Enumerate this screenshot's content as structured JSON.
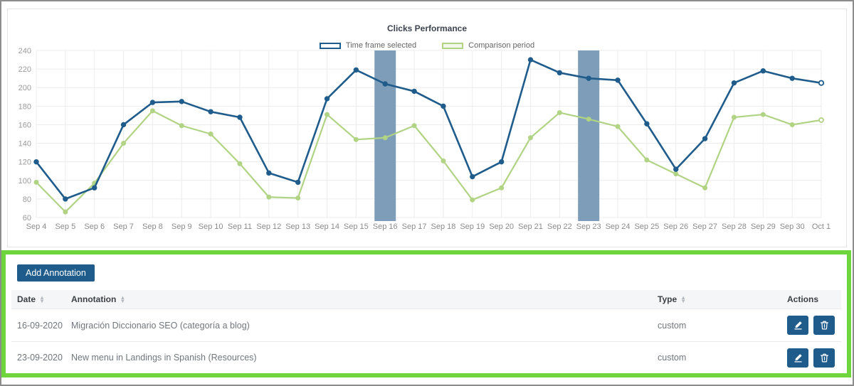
{
  "colors": {
    "primary_blue": "#1f5c8b",
    "comparison_green": "#b1d384",
    "highlight_band": "#7d9db8",
    "panel_border_green": "#6ed63c"
  },
  "icons": {
    "edit": "pencil-icon",
    "delete": "trash-icon",
    "sort": "sort-arrows-icon"
  },
  "chart": {
    "title": "Clicks Performance",
    "legend": [
      {
        "label": "Time frame selected",
        "color": "#1f5c8b"
      },
      {
        "label": "Comparison period",
        "color": "#b1d384"
      }
    ]
  },
  "chart_data": {
    "type": "line",
    "title": "Clicks Performance",
    "xlabel": "",
    "ylabel": "",
    "ylim": [
      60,
      240
    ],
    "ytick_step": 20,
    "grid": true,
    "legend_position": "top",
    "x": [
      "Sep 4",
      "Sep 5",
      "Sep 6",
      "Sep 7",
      "Sep 8",
      "Sep 9",
      "Sep 10",
      "Sep 11",
      "Sep 12",
      "Sep 13",
      "Sep 14",
      "Sep 15",
      "Sep 16",
      "Sep 17",
      "Sep 18",
      "Sep 19",
      "Sep 20",
      "Sep 21",
      "Sep 22",
      "Sep 23",
      "Sep 24",
      "Sep 25",
      "Sep 26",
      "Sep 27",
      "Sep 28",
      "Sep 29",
      "Sep 30",
      "Oct 1"
    ],
    "series": [
      {
        "name": "Time frame selected",
        "color": "#1f5c8b",
        "line_width": 2.6,
        "marker_radius": 3.2,
        "values": [
          120,
          80,
          92,
          160,
          184,
          185,
          174,
          168,
          108,
          98,
          188,
          219,
          204,
          196,
          180,
          104,
          120,
          230,
          216,
          210,
          208,
          161,
          112,
          145,
          205,
          218,
          210,
          205
        ]
      },
      {
        "name": "Comparison period",
        "color": "#b1d384",
        "line_width": 2.2,
        "marker_radius": 3.0,
        "values": [
          98,
          66,
          97,
          140,
          175,
          159,
          150,
          118,
          82,
          81,
          171,
          144,
          146,
          159,
          121,
          79,
          92,
          146,
          173,
          166,
          158,
          122,
          107,
          92,
          168,
          171,
          160,
          165
        ]
      }
    ],
    "highlight_bands": [
      {
        "x": "Sep 16",
        "color": "#7d9db8"
      },
      {
        "x": "Sep 23",
        "color": "#7d9db8"
      }
    ]
  },
  "annotations_panel": {
    "border_color": "#6ed63c",
    "add_button_label": "Add Annotation",
    "table": {
      "headers": [
        {
          "label": "Date",
          "sortable": true
        },
        {
          "label": "Annotation",
          "sortable": true
        },
        {
          "label": "Type",
          "sortable": true
        },
        {
          "label": "Actions",
          "sortable": false
        }
      ],
      "rows": [
        {
          "date": "16-09-2020",
          "annotation": "Migración Diccionario SEO (categoría a blog)",
          "type": "custom"
        },
        {
          "date": "23-09-2020",
          "annotation": "New menu in Landings in Spanish (Resources)",
          "type": "custom"
        }
      ]
    }
  }
}
